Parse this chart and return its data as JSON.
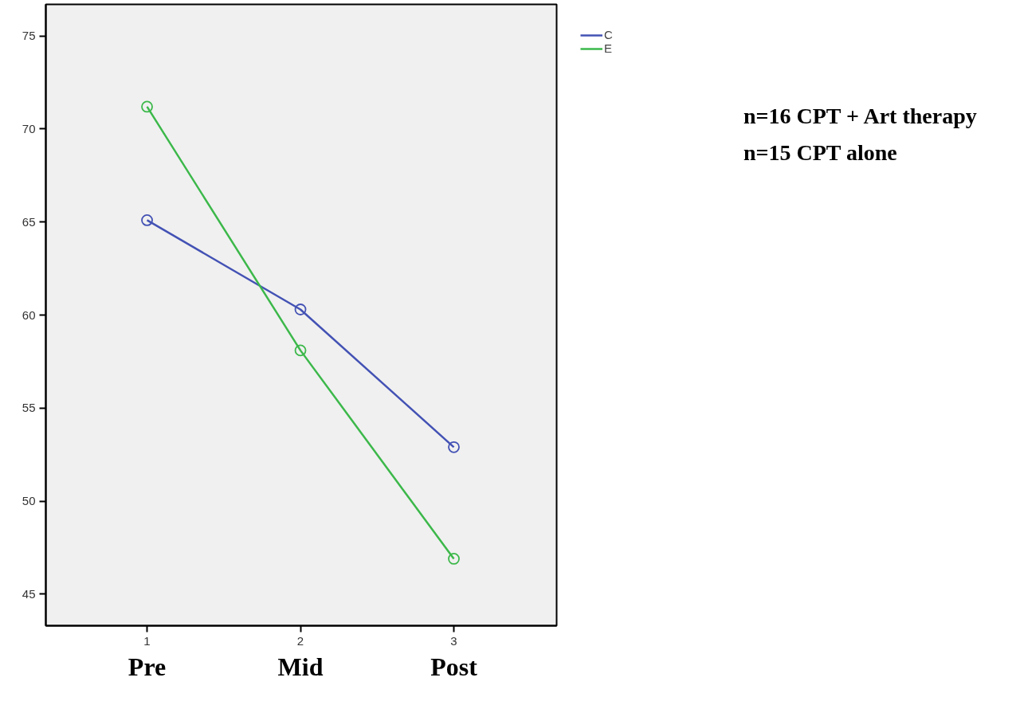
{
  "chart_data": {
    "type": "line",
    "xlim": [
      0.34,
      3.67
    ],
    "ylim": [
      43.3,
      76.7
    ],
    "xticks": [
      1,
      2,
      3
    ],
    "yticks": [
      45,
      50,
      55,
      60,
      65,
      70,
      75
    ],
    "x": [
      1,
      2,
      3
    ],
    "series": [
      {
        "name": "C",
        "color": "#4352b4",
        "values": [
          65.1,
          60.3,
          52.9
        ]
      },
      {
        "name": "E",
        "color": "#3cb84a",
        "values": [
          71.2,
          58.1,
          46.9
        ]
      }
    ],
    "marker": "circle",
    "line_style": "solid",
    "legend": "top right",
    "grid": false,
    "annotations": [
      "Pre",
      "Mid",
      "Post",
      "n=16 CPT + Art therapy",
      "n=15  CPT alone"
    ]
  }
}
